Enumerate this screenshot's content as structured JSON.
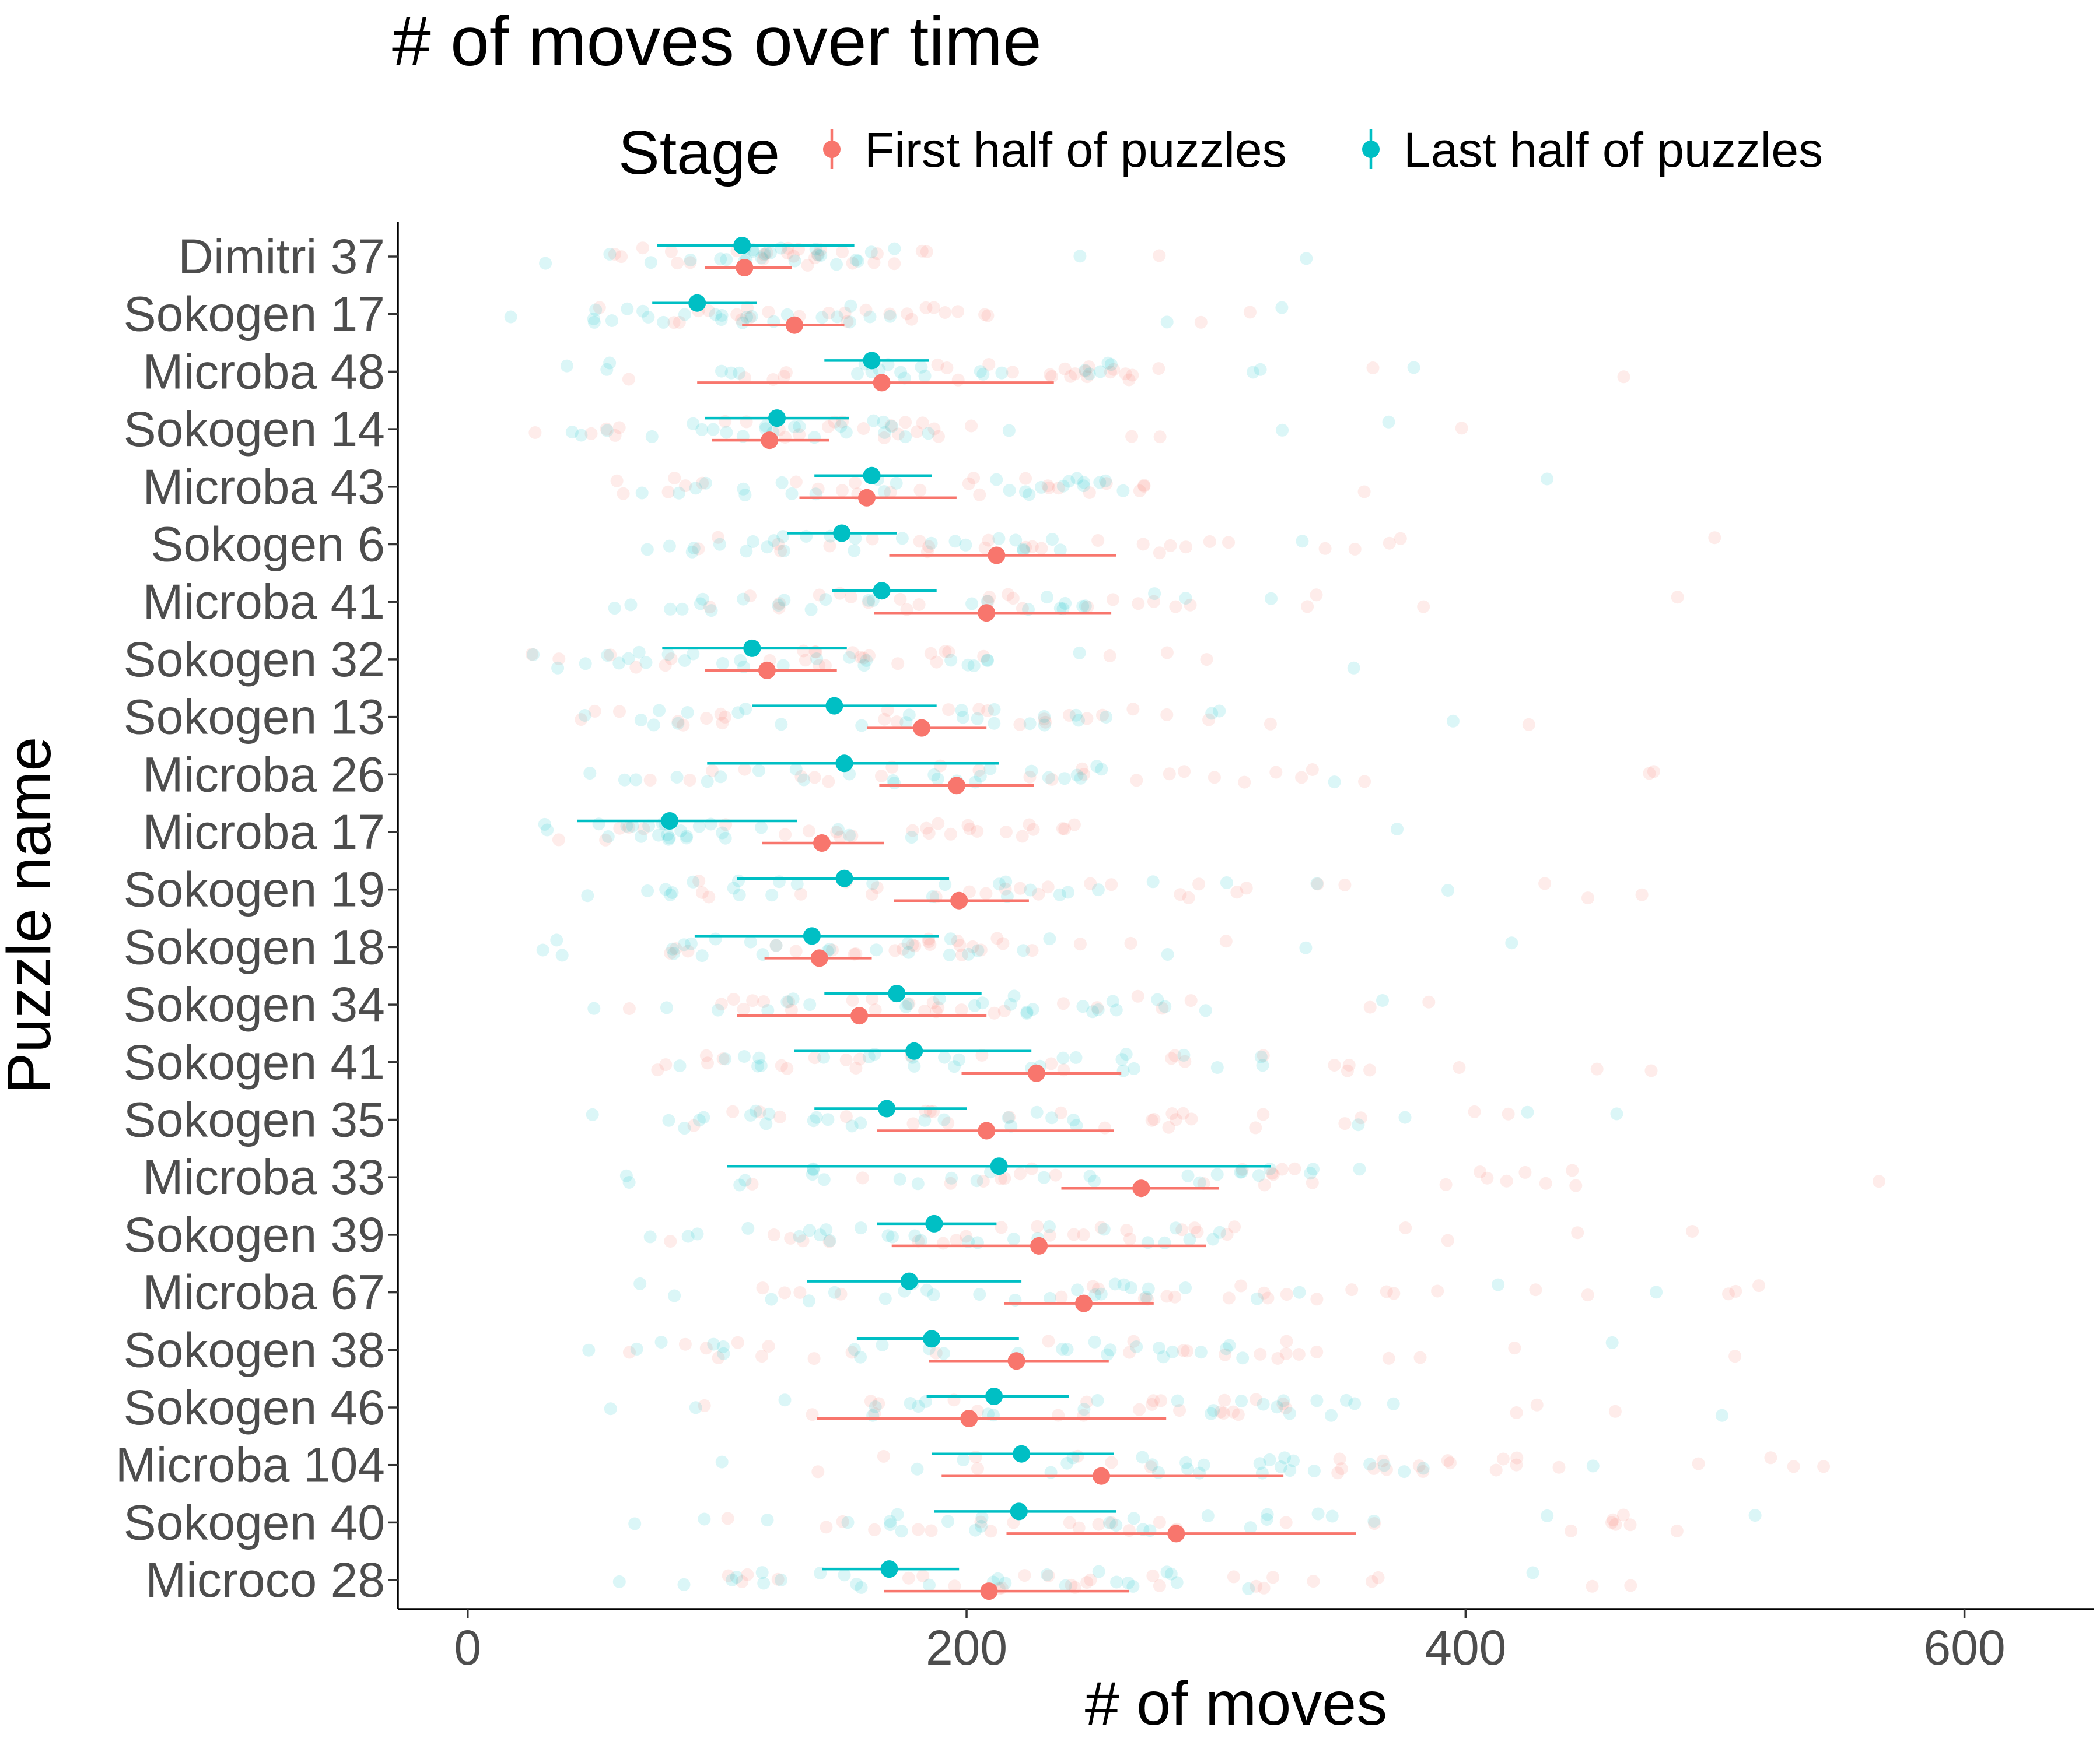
{
  "chart_data": {
    "type": "scatter",
    "title": "# of moves over time",
    "xlabel": "# of moves",
    "ylabel": "Puzzle name",
    "xlim": [
      -28,
      652
    ],
    "xticks": [
      0,
      200,
      400,
      600
    ],
    "grid": false,
    "legend": {
      "title": "Stage",
      "position": "top",
      "entries": [
        "First half of puzzles",
        "Last half of puzzles"
      ]
    },
    "categories": [
      "Dimitri 37",
      "Sokogen 17",
      "Microba 48",
      "Sokogen 14",
      "Microba 43",
      "Sokogen 6",
      "Microba 41",
      "Sokogen 32",
      "Sokogen 13",
      "Microba 26",
      "Microba 17",
      "Sokogen 19",
      "Sokogen 18",
      "Sokogen 34",
      "Sokogen 41",
      "Sokogen 35",
      "Microba 33",
      "Sokogen 39",
      "Microba 67",
      "Sokogen 38",
      "Sokogen 46",
      "Microba 104",
      "Sokogen 40",
      "Microco 28"
    ],
    "series": [
      {
        "name": "First half of puzzles",
        "color": "#F8766D",
        "mean": [
          111,
          131,
          166,
          121,
          160,
          212,
          208,
          120,
          182,
          196,
          142,
          197,
          141,
          157,
          228,
          208,
          270,
          229,
          247,
          220,
          201,
          254,
          284,
          209
        ],
        "ci_low": [
          95,
          110,
          92,
          98,
          133,
          169,
          163,
          95,
          160,
          165,
          118,
          171,
          119,
          108,
          198,
          164,
          238,
          170,
          215,
          185,
          140,
          190,
          216,
          167
        ],
        "ci_high": [
          130,
          151,
          235,
          145,
          196,
          260,
          258,
          148,
          208,
          227,
          167,
          225,
          162,
          208,
          262,
          259,
          301,
          296,
          275,
          257,
          280,
          327,
          356,
          265
        ]
      },
      {
        "name": "Last half of puzzles",
        "color": "#00BFC4",
        "mean": [
          110,
          92,
          162,
          124,
          162,
          150,
          166,
          114,
          147,
          151,
          81,
          151,
          138,
          172,
          179,
          168,
          213,
          187,
          177,
          186,
          211,
          222,
          221,
          169
        ],
        "ci_low": [
          76,
          74,
          143,
          95,
          139,
          128,
          146,
          78,
          114,
          96,
          44,
          108,
          91,
          143,
          131,
          139,
          104,
          164,
          136,
          156,
          184,
          186,
          187,
          142
        ],
        "ci_high": [
          155,
          116,
          185,
          153,
          186,
          172,
          188,
          152,
          188,
          213,
          132,
          193,
          189,
          206,
          226,
          200,
          322,
          212,
          222,
          221,
          241,
          259,
          260,
          197
        ]
      }
    ]
  }
}
